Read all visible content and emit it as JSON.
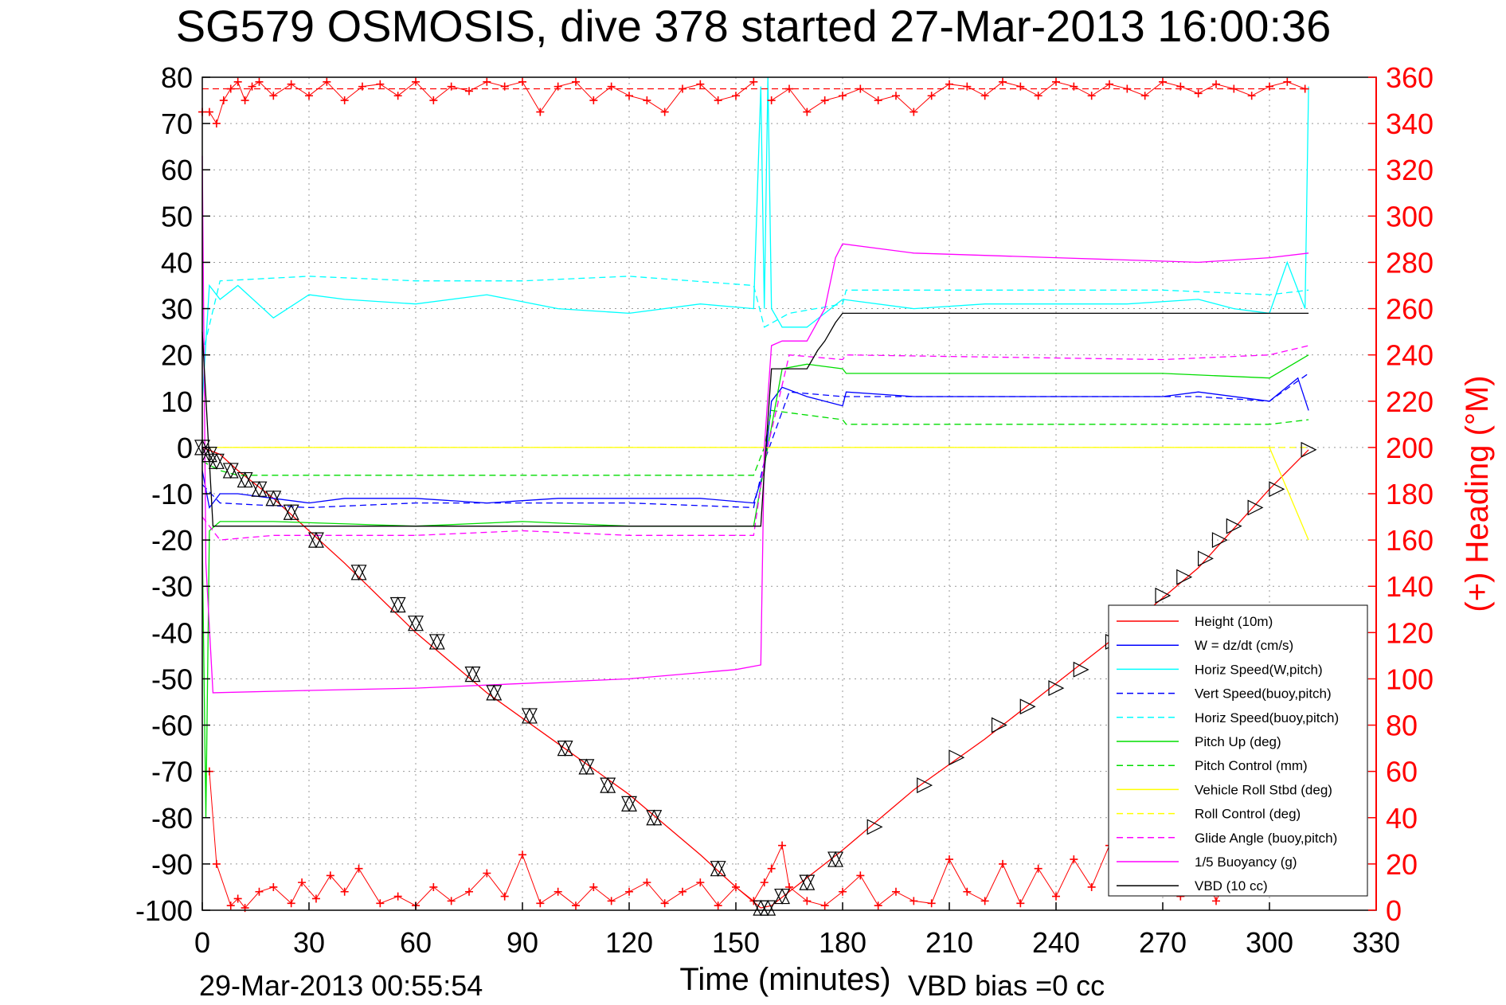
{
  "chart_data": {
    "type": "line",
    "title": "SG579 OSMOSIS, dive 378 started 27-Mar-2013 16:00:36",
    "xlabel": "Time (minutes)",
    "ylabel": "",
    "y2label": "(+) Heading (°M)",
    "xlim": [
      0,
      330
    ],
    "ylim": [
      -100,
      80
    ],
    "y2lim": [
      0,
      360
    ],
    "xticks": [
      "0",
      "30",
      "60",
      "90",
      "120",
      "150",
      "180",
      "210",
      "240",
      "270",
      "300",
      "330"
    ],
    "yticks": [
      "80",
      "70",
      "60",
      "50",
      "40",
      "30",
      "20",
      "10",
      "0",
      "-10",
      "-20",
      "-30",
      "-40",
      "-50",
      "-60",
      "-70",
      "-80",
      "-90",
      "-100"
    ],
    "y2ticks": [
      "360",
      "340",
      "320",
      "300",
      "280",
      "260",
      "240",
      "220",
      "200",
      "180",
      "160",
      "140",
      "120",
      "100",
      "80",
      "60",
      "40",
      "20",
      "0"
    ],
    "grid": true,
    "legend_position": "bottom-right",
    "footer_left": "29-Mar-2013 00:55:54",
    "footer_right": "VBD bias =0 cc",
    "series": [
      {
        "name": "Height (10m)",
        "color": "#ff0000",
        "style": "solid",
        "x": [
          0,
          5,
          10,
          20,
          30,
          40,
          60,
          80,
          100,
          120,
          140,
          150,
          157,
          160,
          170,
          180,
          200,
          220,
          240,
          260,
          280,
          300,
          311
        ],
        "y": [
          0,
          -1.5,
          -5,
          -11,
          -18,
          -25,
          -40,
          -53,
          -64,
          -75,
          -88,
          -95,
          -99.5,
          -99,
          -93,
          -87,
          -74,
          -63,
          -51,
          -39,
          -26,
          -9,
          -0.5
        ]
      },
      {
        "name": "W = dz/dt (cm/s)",
        "color": "#0000ff",
        "style": "solid",
        "x": [
          0,
          2,
          5,
          10,
          20,
          30,
          40,
          60,
          80,
          100,
          120,
          140,
          155,
          158,
          160,
          163,
          170,
          180,
          181,
          200,
          220,
          240,
          270,
          280,
          300,
          308,
          311
        ],
        "y": [
          -5,
          -13,
          -10,
          -10,
          -11,
          -12,
          -11,
          -11,
          -12,
          -11,
          -11,
          -11,
          -12,
          -5,
          10,
          13,
          11,
          9,
          12,
          11,
          11,
          11,
          11,
          12,
          10,
          15,
          8
        ]
      },
      {
        "name": "Horiz Speed(W,pitch)",
        "color": "#00ffff",
        "style": "solid",
        "x": [
          0,
          2,
          5,
          10,
          20,
          30,
          40,
          60,
          80,
          100,
          120,
          140,
          155,
          157,
          158,
          159,
          160,
          163,
          170,
          180,
          200,
          220,
          240,
          260,
          280,
          290,
          300,
          305,
          310,
          311
        ],
        "y": [
          10,
          35,
          32,
          35,
          28,
          33,
          32,
          31,
          33,
          30,
          29,
          31,
          30,
          78,
          30,
          80,
          30,
          26,
          26,
          32,
          30,
          31,
          31,
          31,
          32,
          30,
          29,
          40,
          30,
          78
        ]
      },
      {
        "name": "Vert Speed(buoy,pitch)",
        "color": "#0000ff",
        "style": "dashed",
        "x": [
          0,
          5,
          30,
          60,
          90,
          120,
          155,
          158,
          165,
          180,
          181,
          270,
          280,
          300,
          311
        ],
        "y": [
          -8,
          -12,
          -13,
          -12,
          -12,
          -12,
          -13,
          -3,
          12,
          11,
          11,
          11,
          11,
          10,
          16
        ]
      },
      {
        "name": "Horiz Speed(buoy,pitch)",
        "color": "#00ffff",
        "style": "dashed",
        "x": [
          0,
          5,
          30,
          60,
          90,
          120,
          155,
          158,
          165,
          180,
          181,
          270,
          300,
          311
        ],
        "y": [
          20,
          36,
          37,
          36,
          36,
          37,
          35,
          26,
          29,
          31,
          34,
          34,
          33,
          34
        ]
      },
      {
        "name": "Pitch Up (deg)",
        "color": "#00dd00",
        "style": "solid",
        "x": [
          0,
          1,
          2,
          5,
          20,
          60,
          90,
          120,
          155,
          158,
          163,
          170,
          180,
          181,
          270,
          300,
          311
        ],
        "y": [
          -20,
          -80,
          -18,
          -16,
          -16,
          -17,
          -16,
          -17,
          -17,
          -4,
          17,
          18,
          17,
          16,
          16,
          15,
          20
        ]
      },
      {
        "name": "Pitch Control (mm)",
        "color": "#00dd00",
        "style": "dashed",
        "x": [
          0,
          5,
          10,
          155,
          158,
          160,
          170,
          180,
          181,
          270,
          300,
          311
        ],
        "y": [
          -3,
          -5,
          -6,
          -6,
          0,
          8,
          7,
          6,
          5,
          5,
          5,
          6
        ]
      },
      {
        "name": "Vehicle Roll Stbd (deg)",
        "color": "#ffff00",
        "style": "solid",
        "x": [
          0,
          5,
          10,
          30,
          60,
          90,
          120,
          150,
          157,
          160,
          170,
          200,
          220,
          240,
          260,
          280,
          300,
          311
        ],
        "y": [
          0,
          0,
          0,
          0,
          0,
          0,
          0,
          0,
          0,
          0,
          0,
          0,
          0,
          0,
          0,
          0,
          0,
          -20
        ]
      },
      {
        "name": "Roll Control (deg)",
        "color": "#ffff00",
        "style": "dashed",
        "x": [
          0,
          10,
          155,
          160,
          180,
          311
        ],
        "y": [
          0,
          0,
          0,
          0,
          0,
          0
        ]
      },
      {
        "name": "Glide Angle (buoy,pitch)",
        "color": "#ff00ff",
        "style": "dashed",
        "x": [
          0,
          5,
          20,
          60,
          90,
          120,
          155,
          158,
          165,
          180,
          181,
          270,
          300,
          311
        ],
        "y": [
          -15,
          -20,
          -19,
          -19,
          -18,
          -19,
          -19,
          -3,
          20,
          19,
          20,
          19,
          20,
          22
        ]
      },
      {
        "name": "1/5 Buoyancy (g)",
        "color": "#ff00ff",
        "style": "solid",
        "x": [
          0,
          1,
          3,
          30,
          60,
          90,
          120,
          150,
          157,
          158,
          160,
          163,
          170,
          175,
          178,
          180,
          200,
          240,
          280,
          300,
          311
        ],
        "y": [
          63,
          -25,
          -53,
          -52.5,
          -52,
          -51,
          -50,
          -48,
          -47,
          0,
          22,
          23,
          23,
          30,
          41,
          44,
          42,
          41,
          40,
          41,
          42
        ]
      },
      {
        "name": "VBD (10 cc)",
        "color": "#000000",
        "style": "solid",
        "x": [
          0,
          3,
          5,
          155,
          157,
          158,
          160,
          163,
          170,
          173,
          175,
          178,
          180,
          270,
          300,
          311
        ],
        "y": [
          25,
          -17,
          -17,
          -17,
          -17,
          -5,
          17,
          17,
          17,
          21,
          23,
          27,
          29,
          29,
          29,
          29
        ]
      }
    ],
    "heading_series": {
      "name": "(+) Heading (°M)",
      "color": "#ff0000",
      "marker": "+",
      "axis": "right",
      "reference_line": 355,
      "segments": [
        {
          "x": [
            0,
            2,
            4,
            6,
            8,
            10,
            12,
            14,
            16,
            20,
            25,
            30,
            35,
            40,
            45,
            50,
            55,
            60,
            65,
            70,
            75,
            80,
            85,
            90,
            95,
            100,
            105,
            110,
            115,
            120,
            125,
            130,
            135,
            140,
            145,
            150,
            155
          ],
          "y": [
            345,
            345,
            340,
            350,
            355,
            358,
            350,
            356,
            358,
            352,
            357,
            352,
            358,
            350,
            356,
            357,
            352,
            358,
            350,
            356,
            354,
            358,
            356,
            358,
            345,
            356,
            358,
            350,
            356,
            352,
            350,
            345,
            355,
            357,
            350,
            352,
            358
          ]
        },
        {
          "x": [
            160,
            165,
            170,
            175,
            180,
            185,
            190,
            195,
            200,
            205,
            210,
            215,
            220,
            225,
            230,
            235,
            240,
            245,
            250,
            255,
            260,
            265,
            270,
            275,
            280,
            285,
            290,
            295,
            300,
            305,
            310
          ],
          "y": [
            350,
            355,
            345,
            350,
            352,
            355,
            350,
            352,
            345,
            352,
            357,
            356,
            352,
            358,
            356,
            352,
            358,
            356,
            352,
            357,
            355,
            352,
            358,
            356,
            353,
            357,
            355,
            352,
            356,
            358,
            355
          ]
        },
        {
          "x": [
            2,
            4,
            8,
            10,
            12,
            16,
            20,
            25,
            28,
            32,
            36,
            40,
            44,
            50,
            55,
            60,
            65,
            70,
            75,
            80,
            85,
            90,
            95,
            100,
            105,
            110,
            115,
            120,
            125,
            130,
            135,
            140,
            145,
            150,
            155,
            158,
            160,
            163,
            165,
            170,
            175,
            180,
            185,
            190,
            195,
            200,
            205,
            210,
            215,
            220,
            225,
            230,
            235,
            240,
            245,
            250,
            255,
            260,
            265,
            270,
            275,
            280,
            285,
            290,
            295,
            300,
            305,
            310
          ],
          "y": [
            60,
            20,
            2,
            5,
            1,
            8,
            10,
            3,
            12,
            5,
            15,
            8,
            18,
            3,
            6,
            2,
            10,
            4,
            8,
            16,
            6,
            24,
            3,
            8,
            2,
            10,
            4,
            8,
            12,
            3,
            8,
            12,
            2,
            10,
            4,
            12,
            18,
            28,
            10,
            4,
            2,
            8,
            15,
            2,
            8,
            4,
            3,
            22,
            8,
            4,
            20,
            3,
            18,
            6,
            22,
            10,
            28,
            8,
            18,
            28,
            6,
            22,
            4,
            20,
            8,
            18,
            10,
            8
          ]
        }
      ]
    },
    "markers": {
      "color": "#000000",
      "down": {
        "x": [
          0,
          2,
          4,
          8,
          12,
          16,
          20,
          25,
          32,
          44,
          55,
          60,
          66,
          76,
          82,
          92,
          102,
          108,
          114,
          120,
          127,
          145,
          157,
          159,
          163,
          170,
          178
        ],
        "y": [
          0,
          -1.5,
          -3,
          -5,
          -7,
          -9,
          -11,
          -14,
          -20,
          -27,
          -34,
          -38,
          -42,
          -49,
          -53,
          -58,
          -65,
          -69,
          -73,
          -77,
          -80,
          -91,
          -99.5,
          -99.5,
          -97,
          -94,
          -89
        ]
      },
      "up": {
        "x": [
          189,
          203,
          212,
          224,
          232,
          240,
          247,
          256,
          262,
          270,
          276,
          282,
          286,
          290,
          296,
          302,
          311
        ],
        "y": [
          -82,
          -73,
          -67,
          -60,
          -56,
          -52,
          -48,
          -42,
          -38,
          -32,
          -28,
          -24,
          -20,
          -17,
          -13,
          -9,
          -0.5
        ]
      }
    }
  }
}
